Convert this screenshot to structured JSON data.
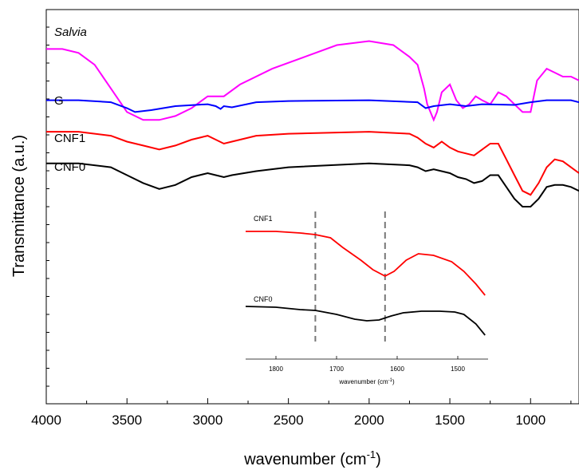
{
  "chart_data": {
    "type": "line",
    "xlabel": "wavenumber (cm",
    "xlabel_sup": "-1",
    "xlabel_close": ")",
    "ylabel": "Transmittance (a.u.)",
    "xlim": [
      4000,
      700
    ],
    "x_reversed": true,
    "x_ticks": [
      "4000",
      "3500",
      "3000",
      "2500",
      "2000",
      "1500",
      "1000"
    ],
    "grid": false,
    "series": [
      {
        "name": "Salvia",
        "italic": true,
        "color": "#ff00ff",
        "points": [
          [
            4000,
            0.9
          ],
          [
            3900,
            0.9
          ],
          [
            3800,
            0.89
          ],
          [
            3700,
            0.86
          ],
          [
            3600,
            0.8
          ],
          [
            3500,
            0.74
          ],
          [
            3400,
            0.72
          ],
          [
            3300,
            0.72
          ],
          [
            3200,
            0.73
          ],
          [
            3100,
            0.75
          ],
          [
            3000,
            0.78
          ],
          [
            2950,
            0.78
          ],
          [
            2900,
            0.78
          ],
          [
            2800,
            0.81
          ],
          [
            2600,
            0.85
          ],
          [
            2400,
            0.88
          ],
          [
            2200,
            0.91
          ],
          [
            2000,
            0.92
          ],
          [
            1850,
            0.91
          ],
          [
            1750,
            0.88
          ],
          [
            1700,
            0.86
          ],
          [
            1660,
            0.8
          ],
          [
            1640,
            0.76
          ],
          [
            1600,
            0.72
          ],
          [
            1580,
            0.74
          ],
          [
            1550,
            0.79
          ],
          [
            1500,
            0.81
          ],
          [
            1460,
            0.77
          ],
          [
            1420,
            0.75
          ],
          [
            1380,
            0.76
          ],
          [
            1340,
            0.78
          ],
          [
            1300,
            0.77
          ],
          [
            1250,
            0.76
          ],
          [
            1200,
            0.79
          ],
          [
            1150,
            0.78
          ],
          [
            1100,
            0.76
          ],
          [
            1050,
            0.74
          ],
          [
            1000,
            0.74
          ],
          [
            960,
            0.82
          ],
          [
            900,
            0.85
          ],
          [
            850,
            0.84
          ],
          [
            800,
            0.83
          ],
          [
            750,
            0.83
          ],
          [
            700,
            0.82
          ]
        ]
      },
      {
        "name": "G",
        "italic": false,
        "color": "#0000ff",
        "points": [
          [
            4000,
            0.77
          ],
          [
            3800,
            0.77
          ],
          [
            3600,
            0.765
          ],
          [
            3500,
            0.75
          ],
          [
            3450,
            0.74
          ],
          [
            3350,
            0.745
          ],
          [
            3200,
            0.755
          ],
          [
            3000,
            0.76
          ],
          [
            2950,
            0.755
          ],
          [
            2920,
            0.748
          ],
          [
            2900,
            0.755
          ],
          [
            2850,
            0.752
          ],
          [
            2700,
            0.765
          ],
          [
            2500,
            0.768
          ],
          [
            2000,
            0.77
          ],
          [
            1700,
            0.765
          ],
          [
            1650,
            0.75
          ],
          [
            1600,
            0.755
          ],
          [
            1500,
            0.76
          ],
          [
            1400,
            0.755
          ],
          [
            1300,
            0.76
          ],
          [
            1100,
            0.758
          ],
          [
            1000,
            0.765
          ],
          [
            900,
            0.77
          ],
          [
            750,
            0.77
          ],
          [
            700,
            0.765
          ]
        ]
      },
      {
        "name": "CNF1",
        "italic": false,
        "color": "#ff0000",
        "points": [
          [
            4000,
            0.69
          ],
          [
            3800,
            0.69
          ],
          [
            3600,
            0.68
          ],
          [
            3500,
            0.665
          ],
          [
            3400,
            0.655
          ],
          [
            3300,
            0.645
          ],
          [
            3200,
            0.655
          ],
          [
            3100,
            0.67
          ],
          [
            3000,
            0.68
          ],
          [
            2950,
            0.67
          ],
          [
            2900,
            0.66
          ],
          [
            2850,
            0.665
          ],
          [
            2700,
            0.68
          ],
          [
            2500,
            0.685
          ],
          [
            2000,
            0.69
          ],
          [
            1750,
            0.685
          ],
          [
            1700,
            0.675
          ],
          [
            1650,
            0.66
          ],
          [
            1600,
            0.65
          ],
          [
            1550,
            0.665
          ],
          [
            1500,
            0.65
          ],
          [
            1450,
            0.64
          ],
          [
            1400,
            0.635
          ],
          [
            1350,
            0.63
          ],
          [
            1300,
            0.645
          ],
          [
            1250,
            0.66
          ],
          [
            1200,
            0.66
          ],
          [
            1150,
            0.62
          ],
          [
            1100,
            0.58
          ],
          [
            1050,
            0.54
          ],
          [
            1000,
            0.53
          ],
          [
            950,
            0.56
          ],
          [
            900,
            0.6
          ],
          [
            850,
            0.62
          ],
          [
            800,
            0.615
          ],
          [
            750,
            0.6
          ],
          [
            700,
            0.585
          ]
        ]
      },
      {
        "name": "CNF0",
        "italic": false,
        "color": "#000000",
        "points": [
          [
            4000,
            0.61
          ],
          [
            3800,
            0.61
          ],
          [
            3600,
            0.6
          ],
          [
            3500,
            0.58
          ],
          [
            3400,
            0.56
          ],
          [
            3300,
            0.545
          ],
          [
            3200,
            0.555
          ],
          [
            3100,
            0.575
          ],
          [
            3000,
            0.585
          ],
          [
            2950,
            0.58
          ],
          [
            2900,
            0.575
          ],
          [
            2850,
            0.58
          ],
          [
            2700,
            0.59
          ],
          [
            2500,
            0.6
          ],
          [
            2000,
            0.61
          ],
          [
            1750,
            0.605
          ],
          [
            1700,
            0.6
          ],
          [
            1650,
            0.59
          ],
          [
            1600,
            0.595
          ],
          [
            1500,
            0.585
          ],
          [
            1450,
            0.575
          ],
          [
            1400,
            0.57
          ],
          [
            1350,
            0.56
          ],
          [
            1300,
            0.565
          ],
          [
            1250,
            0.58
          ],
          [
            1200,
            0.58
          ],
          [
            1150,
            0.55
          ],
          [
            1100,
            0.52
          ],
          [
            1050,
            0.5
          ],
          [
            1000,
            0.5
          ],
          [
            950,
            0.52
          ],
          [
            900,
            0.55
          ],
          [
            850,
            0.555
          ],
          [
            800,
            0.555
          ],
          [
            750,
            0.55
          ],
          [
            700,
            0.54
          ]
        ]
      }
    ],
    "inset": {
      "xlabel": "wavenumber (cm",
      "xlabel_sup": "-1",
      "xlabel_close": ")",
      "xlim": [
        1850,
        1450
      ],
      "x_ticks": [
        "1800",
        "1700",
        "1600",
        "1500"
      ],
      "dashed_lines_at": [
        1735,
        1620
      ],
      "series": [
        {
          "name": "CNF1",
          "color": "#ff0000",
          "points": [
            [
              1850,
              0.8
            ],
            [
              1800,
              0.8
            ],
            [
              1760,
              0.79
            ],
            [
              1735,
              0.78
            ],
            [
              1710,
              0.76
            ],
            [
              1690,
              0.7
            ],
            [
              1660,
              0.62
            ],
            [
              1640,
              0.56
            ],
            [
              1620,
              0.52
            ],
            [
              1605,
              0.55
            ],
            [
              1585,
              0.62
            ],
            [
              1565,
              0.66
            ],
            [
              1540,
              0.65
            ],
            [
              1510,
              0.61
            ],
            [
              1490,
              0.55
            ],
            [
              1470,
              0.47
            ],
            [
              1455,
              0.4
            ]
          ]
        },
        {
          "name": "CNF0",
          "color": "#000000",
          "points": [
            [
              1850,
              0.33
            ],
            [
              1800,
              0.325
            ],
            [
              1760,
              0.31
            ],
            [
              1735,
              0.305
            ],
            [
              1700,
              0.28
            ],
            [
              1670,
              0.25
            ],
            [
              1650,
              0.24
            ],
            [
              1630,
              0.245
            ],
            [
              1610,
              0.27
            ],
            [
              1590,
              0.29
            ],
            [
              1560,
              0.3
            ],
            [
              1530,
              0.3
            ],
            [
              1505,
              0.295
            ],
            [
              1490,
              0.28
            ],
            [
              1470,
              0.22
            ],
            [
              1455,
              0.15
            ]
          ]
        }
      ]
    }
  }
}
